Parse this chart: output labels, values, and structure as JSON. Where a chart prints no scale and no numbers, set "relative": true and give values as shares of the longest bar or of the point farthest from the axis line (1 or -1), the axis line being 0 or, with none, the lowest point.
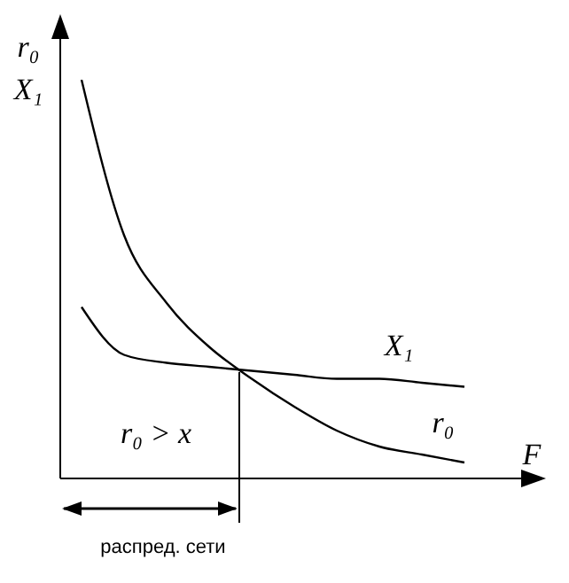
{
  "chart_data": {
    "type": "line",
    "relative": true,
    "xlabel": "F",
    "ylabel": "r₀ X₁",
    "categories": [
      null,
      null,
      null,
      null,
      null,
      null,
      null,
      null,
      null,
      null
    ],
    "series": [
      {
        "name": "r₀",
        "color": "#000000",
        "values": [
          1,
          0.61,
          0.44,
          0.33,
          0.25,
          0.18,
          0.12,
          0.08,
          0.06,
          0.04
        ]
      },
      {
        "name": "X₁",
        "color": "#000000",
        "values": [
          0.43,
          0.31,
          0.29,
          0.28,
          0.27,
          0.26,
          0.25,
          0.25,
          0.24,
          0.23
        ]
      }
    ],
    "marker": "none",
    "line_style": "solid",
    "grid": false,
    "legend": false,
    "annotations": [
      "r₀ > x",
      "распред. сети"
    ]
  }
}
